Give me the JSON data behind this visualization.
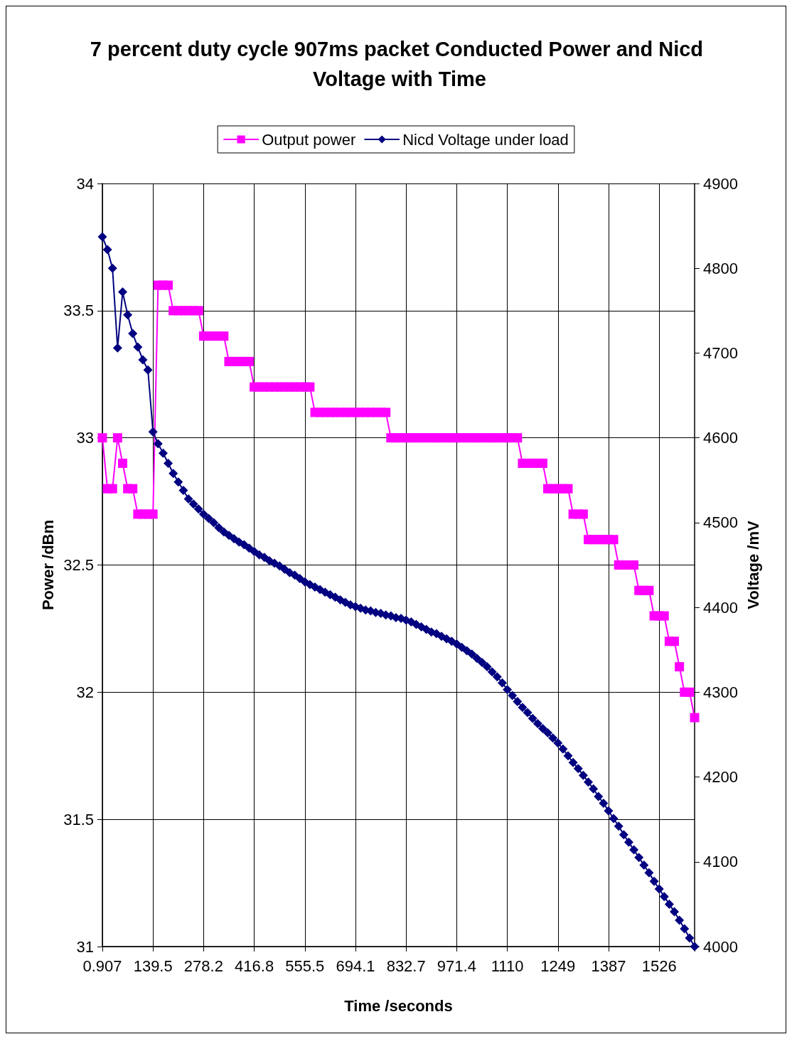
{
  "chart_data": {
    "type": "line",
    "title": "7 percent duty cycle 907ms packet Conducted Power and Nicd Voltage with Time",
    "xlabel": "Time /seconds",
    "ylabel": "Power /dBm",
    "y2label": "Voltage /mV",
    "categories": [
      "0.907",
      null,
      null,
      null,
      null,
      null,
      null,
      null,
      null,
      null,
      "139.5",
      null,
      null,
      null,
      null,
      null,
      null,
      null,
      null,
      null,
      "278.2",
      null,
      null,
      null,
      null,
      null,
      null,
      null,
      null,
      null,
      "416.8",
      null,
      null,
      null,
      null,
      null,
      null,
      null,
      null,
      null,
      "555.5",
      null,
      null,
      null,
      null,
      null,
      null,
      null,
      null,
      null,
      "694.1",
      null,
      null,
      null,
      null,
      null,
      null,
      null,
      null,
      null,
      "832.7",
      null,
      null,
      null,
      null,
      null,
      null,
      null,
      null,
      null,
      "971.4",
      null,
      null,
      null,
      null,
      null,
      null,
      null,
      null,
      null,
      "1110",
      null,
      null,
      null,
      null,
      null,
      null,
      null,
      null,
      null,
      "1249",
      null,
      null,
      null,
      null,
      null,
      null,
      null,
      null,
      null,
      "1387",
      null,
      null,
      null,
      null,
      null,
      null,
      null,
      null,
      null,
      "1526",
      null,
      null,
      null,
      null,
      null,
      null,
      null
    ],
    "series": [
      {
        "name": "Output power",
        "color": "#ff00ff",
        "marker": "square",
        "values": [
          33.0,
          32.8,
          32.8,
          33.0,
          32.9,
          32.8,
          32.8,
          32.7,
          32.7,
          32.7,
          32.7,
          33.6,
          33.6,
          33.6,
          33.5,
          33.5,
          33.5,
          33.5,
          33.5,
          33.5,
          33.4,
          33.4,
          33.4,
          33.4,
          33.4,
          33.3,
          33.3,
          33.3,
          33.3,
          33.3,
          33.2,
          33.2,
          33.2,
          33.2,
          33.2,
          33.2,
          33.2,
          33.2,
          33.2,
          33.2,
          33.2,
          33.2,
          33.1,
          33.1,
          33.1,
          33.1,
          33.1,
          33.1,
          33.1,
          33.1,
          33.1,
          33.1,
          33.1,
          33.1,
          33.1,
          33.1,
          33.1,
          33.0,
          33.0,
          33.0,
          33.0,
          33.0,
          33.0,
          33.0,
          33.0,
          33.0,
          33.0,
          33.0,
          33.0,
          33.0,
          33.0,
          33.0,
          33.0,
          33.0,
          33.0,
          33.0,
          33.0,
          33.0,
          33.0,
          33.0,
          33.0,
          33.0,
          33.0,
          32.9,
          32.9,
          32.9,
          32.9,
          32.9,
          32.8,
          32.8,
          32.8,
          32.8,
          32.8,
          32.7,
          32.7,
          32.7,
          32.6,
          32.6,
          32.6,
          32.6,
          32.6,
          32.6,
          32.5,
          32.5,
          32.5,
          32.5,
          32.4,
          32.4,
          32.4,
          32.3,
          32.3,
          32.3,
          32.2,
          32.2,
          32.1,
          32.0,
          32.0,
          31.9
        ]
      },
      {
        "name": "Nicd Voltage under load",
        "color": "#000080",
        "marker": "diamond",
        "axis": "y2",
        "values": [
          4837,
          4822,
          4800,
          4706,
          4772,
          4745,
          4723,
          4707,
          4692,
          4680,
          4607,
          4593,
          4582,
          4570,
          4558,
          4548,
          4538,
          4528,
          4522,
          4516,
          4510,
          4505,
          4500,
          4494,
          4489,
          4485,
          4481,
          4477,
          4474,
          4470,
          4466,
          4462,
          4459,
          4455,
          4452,
          4449,
          4445,
          4441,
          4438,
          4434,
          4430,
          4427,
          4424,
          4421,
          4418,
          4415,
          4412,
          4409,
          4406,
          4403,
          4401,
          4399,
          4397,
          4396,
          4394,
          4393,
          4391,
          4390,
          4388,
          4387,
          4385,
          4383,
          4380,
          4377,
          4374,
          4371,
          4369,
          4366,
          4363,
          4360,
          4357,
          4353,
          4349,
          4345,
          4340,
          4335,
          4330,
          4324,
          4318,
          4311,
          4303,
          4296,
          4289,
          4282,
          4276,
          4269,
          4263,
          4257,
          4252,
          4246,
          4240,
          4233,
          4225,
          4217,
          4210,
          4202,
          4194,
          4186,
          4177,
          4169,
          4160,
          4151,
          4142,
          4132,
          4123,
          4114,
          4105,
          4096,
          4087,
          4077,
          4068,
          4059,
          4050,
          4041,
          4031,
          4021,
          4010,
          4000
        ]
      }
    ],
    "ylim": [
      31,
      34
    ],
    "yticks": [
      31,
      31.5,
      32,
      32.5,
      33,
      33.5,
      34
    ],
    "y2lim": [
      4000,
      4900
    ],
    "y2ticks": [
      4000,
      4100,
      4200,
      4300,
      4400,
      4500,
      4600,
      4700,
      4800,
      4900
    ],
    "grid": true,
    "legend": "top",
    "line_style": "solid"
  }
}
